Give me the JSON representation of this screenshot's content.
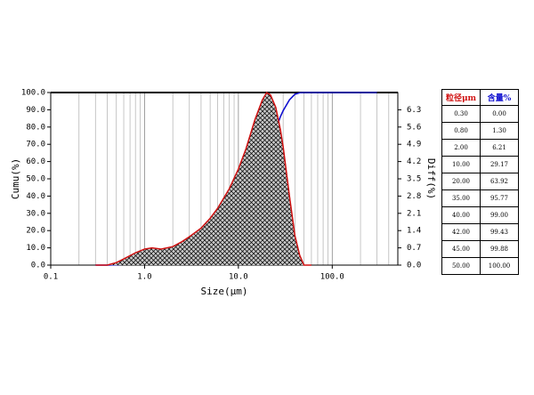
{
  "chart_data": {
    "type": "line",
    "x_label": "Size(μm)",
    "y_label": "Cumu(%)",
    "y2_label": "Diff(%)",
    "log_x": true,
    "grid": true,
    "xlim": [
      0.1,
      500
    ],
    "xticks": [
      0.1,
      {
        "value": 1,
        "label": "1.0"
      },
      {
        "value": 10,
        "label": "10.0"
      },
      {
        "value": 100,
        "label": "100.0"
      }
    ],
    "ylim": [
      0,
      100
    ],
    "yticks": [
      {
        "value": 0,
        "label": "0.0"
      },
      {
        "value": 10,
        "label": "10.0"
      },
      {
        "value": 20,
        "label": "20.0"
      },
      {
        "value": 30,
        "label": "30.0"
      },
      {
        "value": 40,
        "label": "40.0"
      },
      {
        "value": 50,
        "label": "50.0"
      },
      {
        "value": 60,
        "label": "60.0"
      },
      {
        "value": 70,
        "label": "70.0"
      },
      {
        "value": 80,
        "label": "80.0"
      },
      {
        "value": 90,
        "label": "90.0"
      },
      {
        "value": 100,
        "label": "100.0"
      }
    ],
    "y2lim": [
      0,
      7
    ],
    "y2ticks": [
      {
        "value": 0,
        "label": "0.0"
      },
      0.7,
      1.4,
      2.1,
      2.8,
      3.5,
      4.2,
      4.9,
      5.6,
      6.3
    ],
    "x": [
      0.3,
      0.4,
      0.5,
      0.6,
      0.8,
      1.0,
      1.2,
      1.5,
      2.0,
      2.5,
      3.0,
      4.0,
      5.0,
      6.0,
      8.0,
      10,
      12,
      15,
      18,
      20,
      22,
      25,
      28,
      30,
      35,
      40,
      45,
      50,
      60,
      100,
      200,
      300
    ],
    "series": [
      {
        "color": "#1010d0",
        "axis": "y",
        "values": [
          0,
          0,
          0.2,
          0.5,
          1.3,
          2.3,
          3.2,
          4.5,
          6.21,
          7.8,
          9.3,
          12.5,
          15.5,
          18.5,
          23.8,
          29.17,
          35,
          45,
          56,
          63.92,
          70,
          78.5,
          86,
          89.5,
          95.77,
          99,
          99.88,
          100,
          100,
          100,
          100,
          100
        ]
      },
      {
        "color": "#d01010",
        "axis": "y2",
        "values": [
          0,
          0,
          0.1,
          0.25,
          0.5,
          0.65,
          0.7,
          0.65,
          0.75,
          0.95,
          1.15,
          1.5,
          1.9,
          2.3,
          3.1,
          3.9,
          4.7,
          5.9,
          6.7,
          7.0,
          6.9,
          6.4,
          5.5,
          4.8,
          2.8,
          1.2,
          0.4,
          0,
          0,
          null,
          null,
          null
        ]
      }
    ]
  },
  "table": {
    "header": [
      "粒径μm",
      "含量%"
    ],
    "rows": [
      [
        "0.30",
        "0.00"
      ],
      [
        "0.80",
        "1.30"
      ],
      [
        "2.00",
        "6.21"
      ],
      [
        "10.00",
        "29.17"
      ],
      [
        "20.00",
        "63.92"
      ],
      [
        "35.00",
        "95.77"
      ],
      [
        "40.00",
        "99.00"
      ],
      [
        "42.00",
        "99.43"
      ],
      [
        "45.00",
        "99.88"
      ],
      [
        "50.00",
        "100.00"
      ]
    ]
  }
}
